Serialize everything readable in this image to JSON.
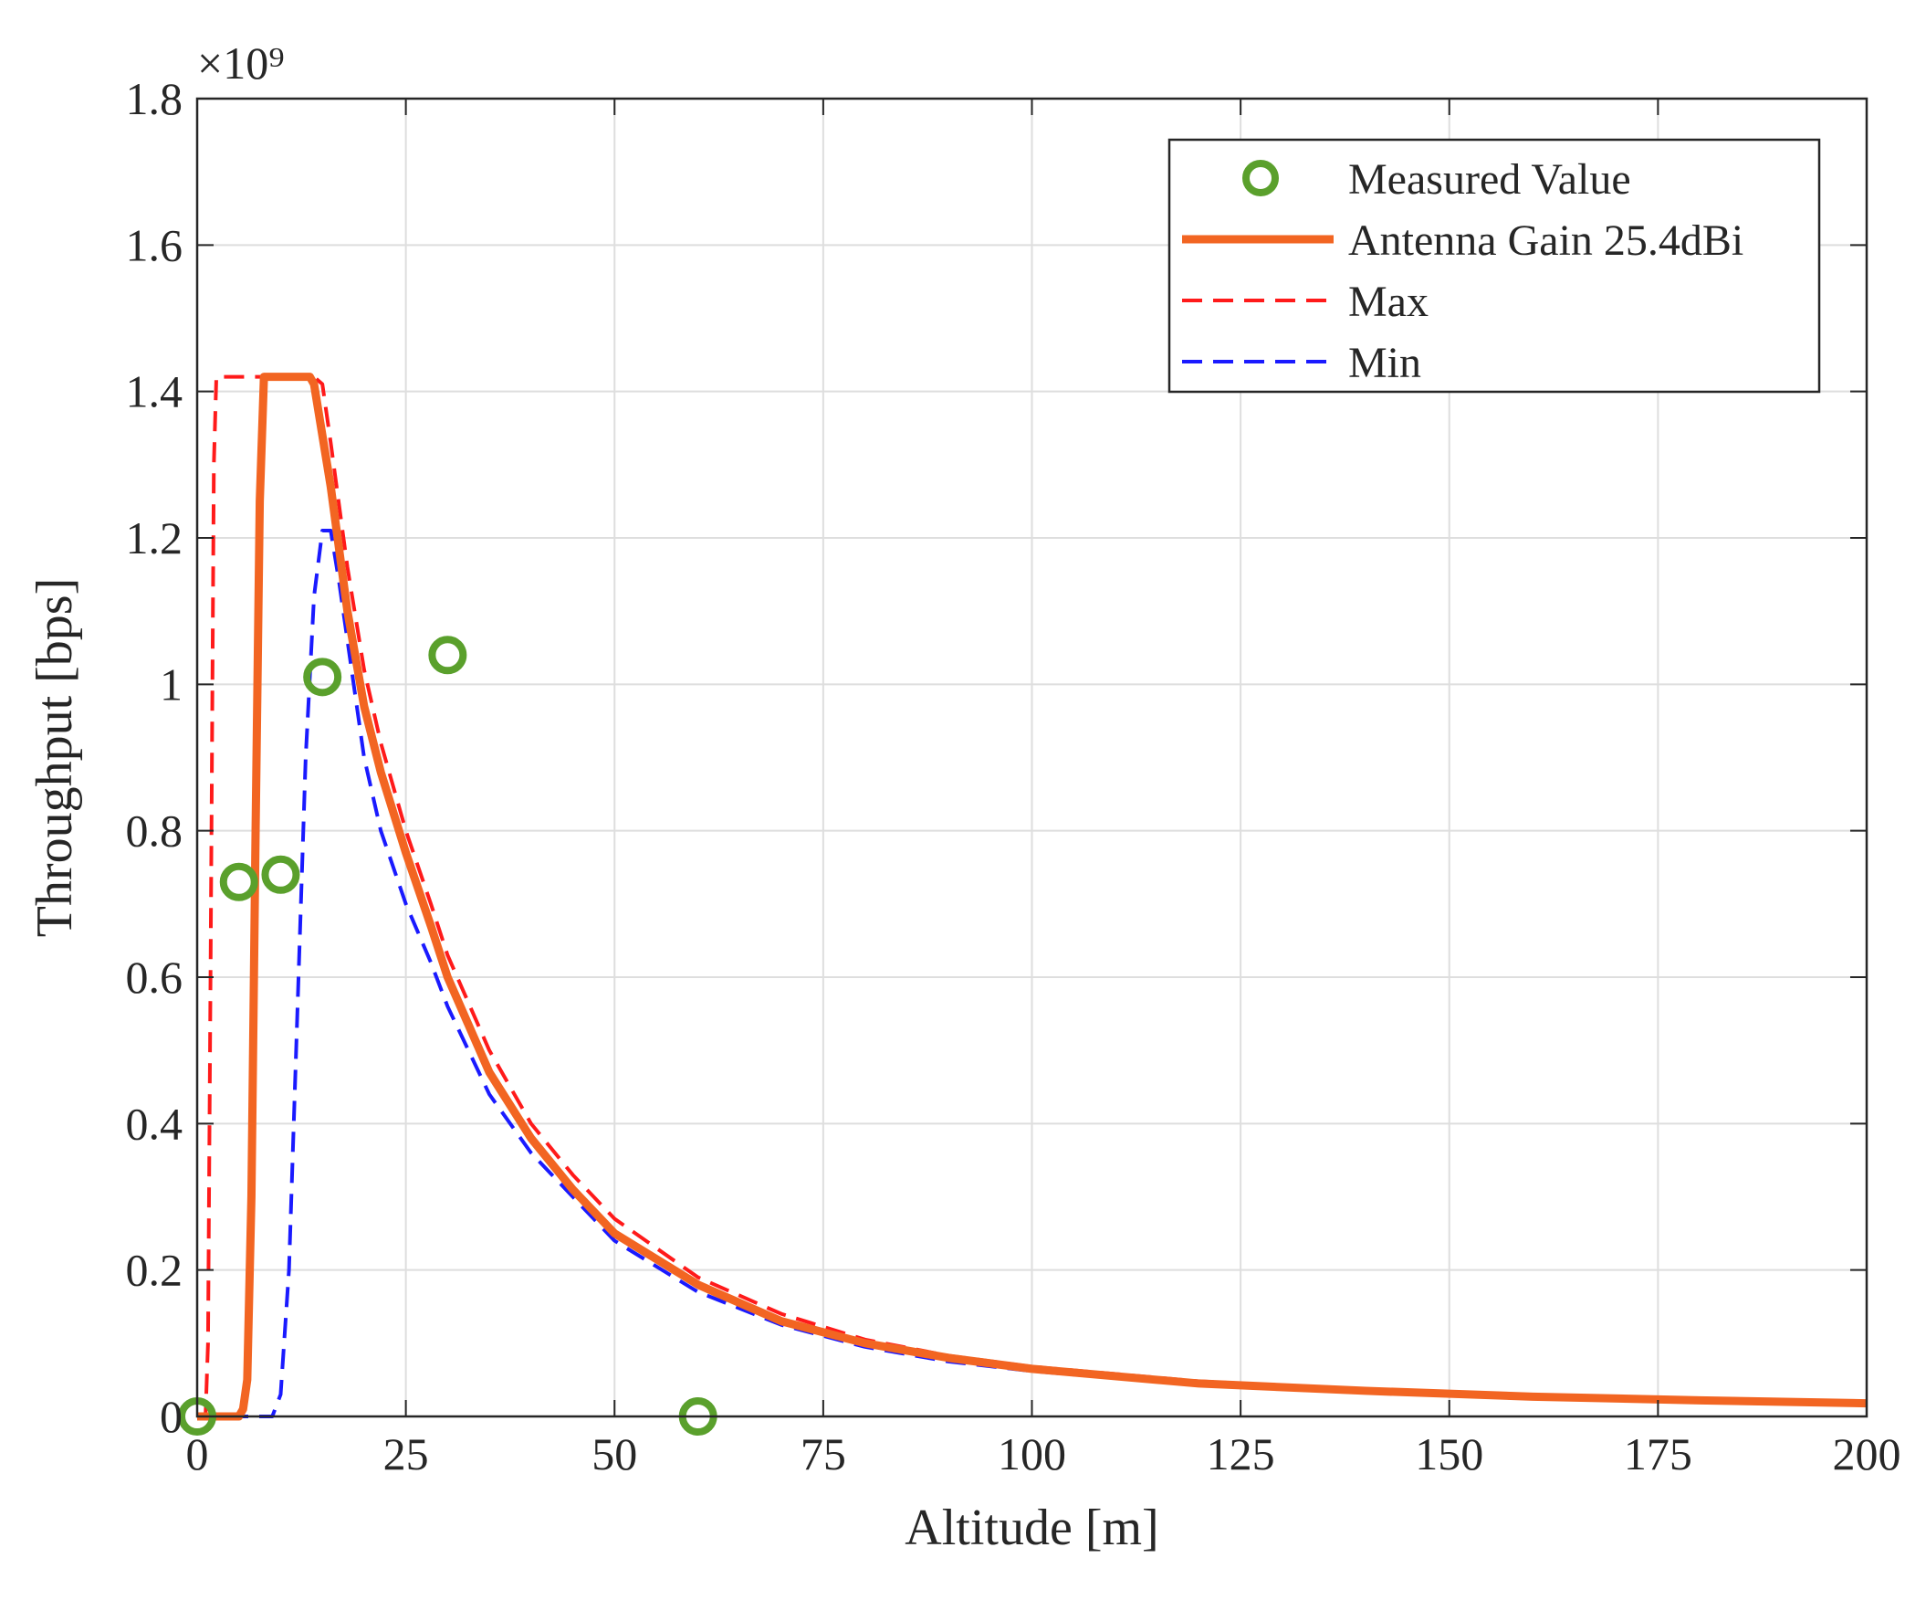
{
  "chart_data": {
    "type": "line",
    "title": "",
    "xlabel": "Altitude [m]",
    "ylabel": "Throughput [bps]",
    "y_exponent_label": "×10⁹",
    "xlim": [
      0,
      200
    ],
    "ylim": [
      0,
      1.8
    ],
    "xticks": [
      0,
      25,
      50,
      75,
      100,
      125,
      150,
      175,
      200
    ],
    "yticks": [
      0,
      0.2,
      0.4,
      0.6,
      0.8,
      1.0,
      1.2,
      1.4,
      1.6,
      1.8
    ],
    "xtick_labels": [
      "0",
      "25",
      "50",
      "75",
      "100",
      "125",
      "150",
      "175",
      "200"
    ],
    "ytick_labels": [
      "0",
      "0.2",
      "0.4",
      "0.6",
      "0.8",
      "1",
      "1.2",
      "1.4",
      "1.6",
      "1.8"
    ],
    "grid": true,
    "legend_position": "top-right",
    "series": [
      {
        "name": "Measured Value",
        "style": "marker",
        "color": "#5aa02c",
        "x": [
          0,
          5,
          10,
          15,
          30,
          60
        ],
        "y": [
          0,
          0.73,
          0.74,
          1.01,
          1.04,
          0
        ]
      },
      {
        "name": "Antenna Gain 25.4dBi",
        "style": "solid",
        "color": "#f26522",
        "x": [
          0,
          5,
          5.5,
          6,
          6.5,
          7,
          7.5,
          8,
          13.5,
          14,
          16,
          18,
          20,
          22,
          25,
          28,
          30,
          35,
          40,
          45,
          50,
          60,
          70,
          80,
          90,
          100,
          120,
          140,
          160,
          180,
          200
        ],
        "y": [
          0,
          0,
          0.01,
          0.05,
          0.3,
          0.8,
          1.25,
          1.42,
          1.42,
          1.41,
          1.27,
          1.1,
          0.97,
          0.88,
          0.77,
          0.67,
          0.6,
          0.47,
          0.38,
          0.31,
          0.25,
          0.18,
          0.13,
          0.1,
          0.08,
          0.065,
          0.045,
          0.035,
          0.027,
          0.022,
          0.018
        ]
      },
      {
        "name": "Max",
        "style": "dashed",
        "color": "#ff1a1a",
        "x": [
          0,
          1,
          1.3,
          1.6,
          2,
          2.3,
          14,
          15,
          16,
          18,
          20,
          22,
          25,
          28,
          30,
          35,
          40,
          45,
          50,
          60,
          70,
          80,
          90,
          100,
          120,
          140,
          160,
          180,
          200
        ],
        "y": [
          0,
          0,
          0.1,
          0.6,
          1.3,
          1.42,
          1.42,
          1.41,
          1.33,
          1.16,
          1.02,
          0.92,
          0.8,
          0.7,
          0.63,
          0.5,
          0.4,
          0.33,
          0.27,
          0.19,
          0.14,
          0.105,
          0.083,
          0.068,
          0.048,
          0.037,
          0.029,
          0.024,
          0.02
        ]
      },
      {
        "name": "Min",
        "style": "dashed",
        "color": "#1a1aff",
        "x": [
          0,
          9,
          10,
          11,
          12,
          13,
          14,
          15,
          16,
          17,
          18,
          20,
          22,
          25,
          28,
          30,
          35,
          40,
          45,
          50,
          60,
          70,
          80,
          90,
          100,
          120,
          140,
          160,
          180,
          200
        ],
        "y": [
          0,
          0,
          0.03,
          0.2,
          0.55,
          0.9,
          1.12,
          1.21,
          1.21,
          1.14,
          1.06,
          0.9,
          0.8,
          0.7,
          0.62,
          0.56,
          0.44,
          0.36,
          0.3,
          0.24,
          0.17,
          0.125,
          0.095,
          0.075,
          0.062,
          0.043,
          0.033,
          0.026,
          0.021,
          0.017
        ]
      }
    ]
  }
}
